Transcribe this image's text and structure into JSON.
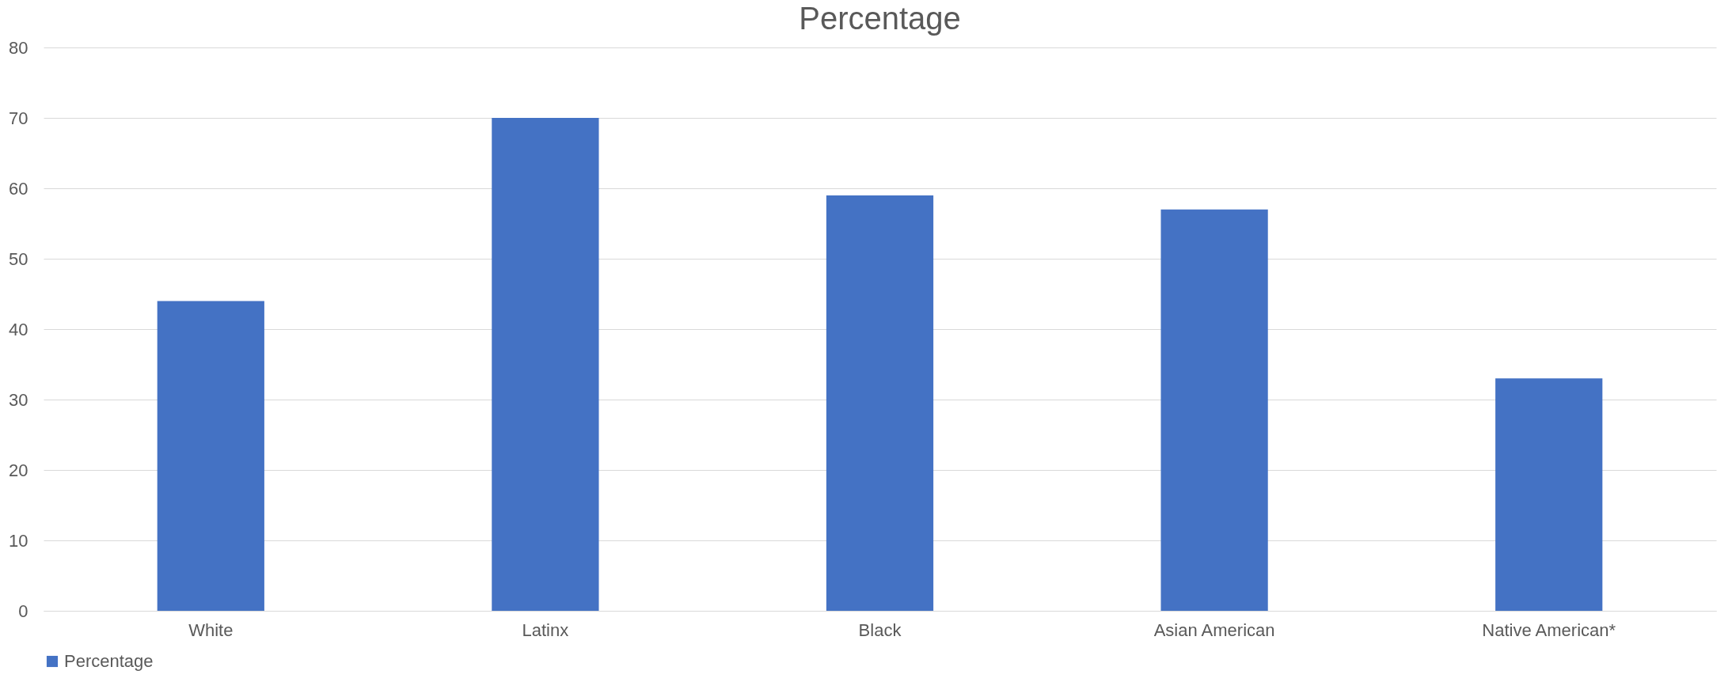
{
  "chart_data": {
    "type": "bar",
    "title": "Percentage",
    "categories": [
      "White",
      "Latinx",
      "Black",
      "Asian American",
      "Native American*"
    ],
    "series": [
      {
        "name": "Percentage",
        "color": "#4472c4",
        "values": [
          44,
          70,
          59,
          57,
          33
        ]
      }
    ],
    "ylim": [
      0,
      80
    ],
    "yticks": [
      0,
      10,
      20,
      30,
      40,
      50,
      60,
      70,
      80
    ],
    "grid": "y",
    "legend": "bottom"
  }
}
